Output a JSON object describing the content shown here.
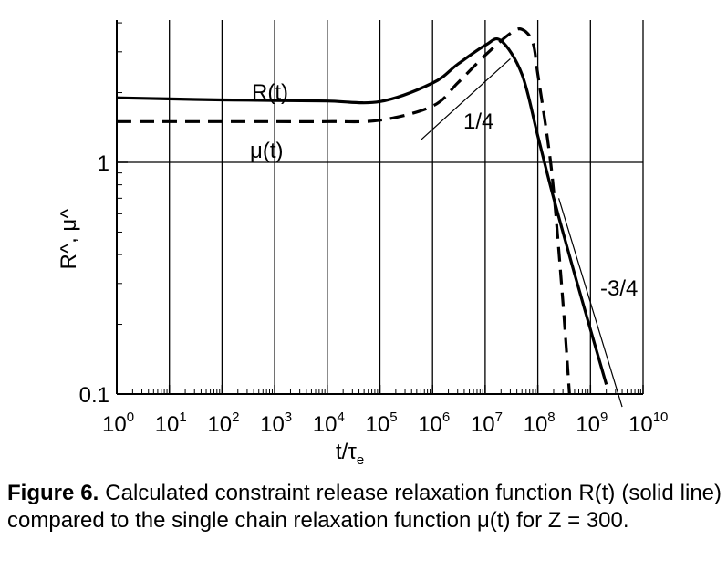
{
  "chart_data": {
    "type": "line",
    "x_scale": "log",
    "y_scale": "log",
    "xlim": [
      1,
      10000000000
    ],
    "ylim": [
      0.1,
      4
    ],
    "xlabel": "t/τ",
    "xlabel_sub": "e",
    "ylabel": "R^, μ^",
    "x_tick_exponents": [
      0,
      1,
      2,
      3,
      4,
      5,
      6,
      7,
      8,
      9,
      10
    ],
    "x_tick_base": "10",
    "y_tick_labels": [
      {
        "value": 1,
        "label": "1"
      },
      {
        "value": 0.1,
        "label": "0.1"
      }
    ],
    "grid": {
      "vertical": true,
      "horizontal": "y=1 only"
    },
    "series": [
      {
        "name": "R(t)",
        "style": "solid",
        "x": [
          1,
          10,
          100,
          1000,
          10000,
          100000,
          1000000,
          3000000,
          10000000,
          20000000,
          50000000,
          100000000,
          200000000,
          500000000,
          1000000000,
          2000000000
        ],
        "y": [
          1.9,
          1.88,
          1.86,
          1.85,
          1.84,
          1.83,
          2.2,
          2.65,
          3.2,
          3.35,
          2.4,
          1.3,
          0.7,
          0.33,
          0.19,
          0.11
        ]
      },
      {
        "name": "μ(t)",
        "style": "dashed",
        "x": [
          1,
          10,
          100,
          1000,
          10000,
          100000,
          1000000,
          3000000,
          10000000,
          30000000,
          50000000,
          80000000,
          100000000,
          150000000,
          200000000,
          300000000,
          400000000
        ],
        "y": [
          1.5,
          1.5,
          1.5,
          1.5,
          1.5,
          1.52,
          1.75,
          2.2,
          2.9,
          3.6,
          3.75,
          3.3,
          2.4,
          1.3,
          0.75,
          0.25,
          0.1
        ]
      }
    ],
    "slope_lines": [
      {
        "label": "1/4",
        "x": [
          600000,
          30000000
        ],
        "y": [
          1.25,
          2.8
        ]
      },
      {
        "label": "-3/4",
        "x": [
          250000000,
          4000000000
        ],
        "y": [
          0.7,
          0.088
        ]
      }
    ],
    "annotations": [
      {
        "text": "R(t)"
      },
      {
        "text": "μ(t)"
      },
      {
        "text": "1/4"
      },
      {
        "text": "-3/4"
      }
    ]
  },
  "caption": {
    "label": "Figure 6.",
    "text": "Calculated constraint release relaxation function R(t) (solid line) compared to the single chain relaxation function μ(t) for Z = 300."
  }
}
